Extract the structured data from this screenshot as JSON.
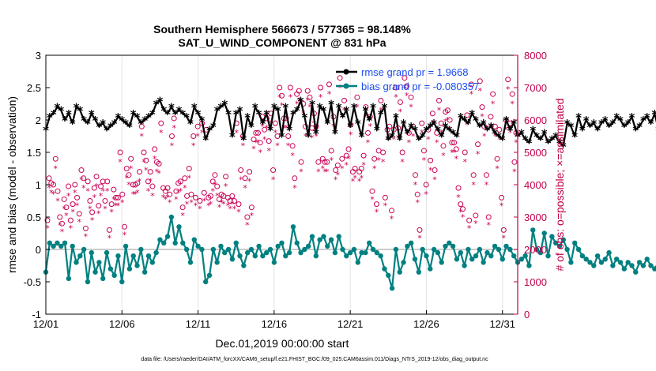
{
  "chart_data": {
    "type": "line",
    "title": "Southern Hemisphere 566673 / 577365 = 98.148%",
    "subtitle": "SAT_U_WIND_COMPONENT @ 831 hPa",
    "xlabel": "Dec.01,2019 00:00:00 start",
    "ylabel": "rmse and bias (model - observation)",
    "ylabel_right": "# of obs: o=possible; ×=assimilated",
    "ylim": [
      -1,
      3
    ],
    "ylim_right": [
      0,
      8000
    ],
    "xlim": [
      1,
      32
    ],
    "x_ticks": [
      1,
      6,
      11,
      16,
      21,
      26,
      31
    ],
    "x_tick_labels": [
      "12/01",
      "12/06",
      "12/11",
      "12/16",
      "12/21",
      "12/26",
      "12/31"
    ],
    "y_ticks": [
      "-1",
      "-0.5",
      "0",
      "0.5",
      "1",
      "1.5",
      "2",
      "2.5",
      "3"
    ],
    "y_ticks_right": [
      "0",
      "1000",
      "2000",
      "3000",
      "4000",
      "5000",
      "6000",
      "7000",
      "8000"
    ],
    "zero_line": 0,
    "x_start": 1.0,
    "x_step": 0.25,
    "colors": {
      "rmse": "#000000",
      "bias": "#008080",
      "obs": "#cc0055",
      "axis_right": "#c0004a",
      "zero": "#bbbbbb"
    },
    "series": [
      {
        "name": "rmse grand pr = 1.9668",
        "values": [
          1.85,
          2.05,
          2.1,
          2.2,
          2.15,
          2.0,
          2.1,
          1.95,
          2.2,
          2.15,
          2.0,
          1.95,
          2.1,
          2.0,
          1.9,
          1.95,
          1.85,
          1.9,
          1.95,
          2.05,
          2.0,
          1.95,
          1.9,
          2.1,
          2.05,
          1.95,
          2.0,
          2.05,
          2.1,
          2.25,
          2.3,
          2.15,
          2.1,
          2.2,
          2.1,
          2.15,
          2.1,
          2.05,
          1.95,
          2.2,
          2.1,
          2.0,
          1.7,
          1.85,
          1.9,
          2.15,
          2.2,
          2.25,
          2.1,
          1.75,
          2.1,
          2.15,
          1.7,
          2.05,
          1.9,
          2.2,
          2.1,
          1.95,
          2.1,
          1.85,
          2.2,
          2.15,
          1.75,
          2.2,
          1.85,
          2.1,
          2.15,
          2.3,
          2.05,
          1.75,
          2.25,
          1.8,
          2.2,
          2.15,
          1.95,
          2.25,
          1.8,
          2.2,
          2.05,
          2.15,
          1.9,
          2.2,
          1.95,
          1.75,
          2.15,
          2.0,
          2.2,
          1.85,
          2.1,
          2.2,
          1.7,
          1.75,
          2.05,
          1.7,
          1.95,
          1.8,
          1.9,
          1.85,
          1.7,
          1.75,
          1.85,
          1.9,
          1.95,
          1.85,
          1.75,
          1.9,
          1.85,
          1.8,
          1.75,
          2.05,
          2.0,
          1.95,
          2.1,
          2.0,
          1.9,
          1.95,
          1.85,
          1.9,
          1.8,
          1.75,
          1.7,
          2.0,
          1.85,
          1.95,
          1.75,
          1.8,
          1.7,
          1.65,
          1.85,
          1.75,
          1.7,
          1.8,
          1.65,
          1.7,
          1.75,
          1.65,
          1.6,
          1.95,
          1.9,
          1.75,
          2.05,
          1.85,
          2.0,
          1.9,
          1.95,
          1.85,
          1.95,
          2.0,
          1.9,
          1.95,
          2.05,
          2.0,
          1.9,
          1.95,
          2.05,
          1.85,
          1.9,
          2.0,
          2.05,
          1.95,
          2.1,
          1.85,
          2.0,
          1.6,
          1.9,
          2.05,
          2.0,
          2.1,
          1.95,
          2.1,
          2.15,
          2.05,
          2.2,
          2.0,
          1.9,
          1.85
        ]
      },
      {
        "name": "bias grand pr = -0.080357",
        "values": [
          -0.35,
          0.1,
          0.05,
          0.1,
          0.05,
          0.1,
          -0.45,
          0.05,
          -0.2,
          -0.1,
          0.0,
          -0.5,
          -0.05,
          -0.35,
          -0.2,
          -0.45,
          -0.05,
          -0.3,
          -0.4,
          -0.1,
          -0.5,
          0.05,
          -0.3,
          -0.1,
          -0.25,
          0.0,
          -0.35,
          -0.1,
          -0.2,
          -0.05,
          0.15,
          0.1,
          0.2,
          0.5,
          0.1,
          0.35,
          0.1,
          0.0,
          -0.2,
          0.15,
          0.05,
          0.0,
          -0.5,
          -0.4,
          0.0,
          -0.2,
          0.05,
          -0.05,
          0.0,
          -0.15,
          0.1,
          -0.1,
          -0.25,
          -0.05,
          0.0,
          -0.1,
          0.05,
          -0.1,
          -0.05,
          0.0,
          -0.2,
          0.05,
          0.1,
          -0.1,
          -0.05,
          0.35,
          0.1,
          -0.05,
          0.0,
          0.05,
          0.2,
          -0.1,
          0.15,
          0.2,
          0.05,
          0.15,
          -0.05,
          0.2,
          0.0,
          -0.1,
          -0.05,
          0.0,
          -0.2,
          -0.05,
          -0.05,
          0.1,
          0.0,
          -0.05,
          -0.1,
          -0.3,
          -0.4,
          -0.6,
          0.0,
          -0.35,
          -0.2,
          0.05,
          0.1,
          -0.15,
          -0.35,
          0.0,
          -0.1,
          -0.3,
          0.0,
          -0.05,
          -0.2,
          0.05,
          0.1,
          0.05,
          -0.15,
          -0.05,
          -0.25,
          0.0,
          -0.15,
          -0.1,
          0.0,
          -0.2,
          -0.05,
          -0.1,
          0.05,
          0.0,
          -0.15,
          0.05,
          0.0,
          -0.1,
          -0.2,
          -0.15,
          -0.1,
          -0.25,
          0.3,
          0.0,
          -0.05,
          0.25,
          -0.1,
          0.2,
          0.1,
          0.05,
          0.15,
          0.0,
          -0.2,
          0.1,
          0.0,
          -0.1,
          -0.15,
          -0.2,
          -0.25,
          -0.1,
          -0.2,
          -0.15,
          -0.05,
          -0.25,
          -0.15,
          -0.2,
          -0.3,
          -0.2,
          -0.25,
          -0.35,
          -0.2,
          -0.25,
          -0.15,
          -0.25,
          -0.3,
          -0.2,
          -0.25,
          -0.15,
          -0.3,
          -0.2,
          -0.25,
          -0.1,
          -0.2,
          -0.3,
          -0.35,
          -0.1,
          0.1,
          -0.15,
          0.0,
          -0.25,
          0.05,
          -0.15,
          -0.3,
          0.15
        ]
      },
      {
        "name": "possible",
        "axis": "right",
        "marker": "o",
        "values": [
          2900,
          4200,
          4050,
          4000,
          4800,
          3800,
          3000,
          2800,
          3550,
          3300,
          3950,
          2900,
          3400,
          4000,
          3600,
          3100,
          4450,
          4200,
          2650,
          4100,
          3500,
          3150,
          3900,
          4250,
          3350,
          3950,
          4100,
          3500,
          4100,
          2600,
          3400,
          3850,
          3600,
          3600,
          5000,
          3700,
          2700,
          4500,
          4300,
          4800,
          4000,
          4000,
          4050,
          4400,
          5800,
          5000,
          4750,
          4100,
          4400,
          3950,
          5100,
          4700,
          4650,
          5900,
          3900,
          3800,
          3900,
          3700,
          5500,
          6050,
          3800,
          4050,
          4100,
          3300,
          4200,
          3650,
          4500,
          3700,
          5500,
          3600,
          5800,
          3500,
          5900,
          3750,
          5700,
          3600,
          3650,
          4100,
          4300,
          3950,
          3550,
          3700,
          3650,
          4250,
          3600,
          3500,
          3650,
          3500,
          5900,
          3400,
          4450,
          5500,
          4200,
          3000,
          4400,
          3300,
          5400,
          5600,
          5600,
          5300,
          6100,
          5700,
          6050,
          5350,
          6200,
          4450,
          5900,
          5500,
          7000,
          6750,
          6050,
          6050,
          5500,
          7000,
          5200,
          4200,
          6800,
          6900,
          4700,
          6500,
          5800,
          6900,
          6700,
          5750,
          6200,
          5800,
          4700,
          7000,
          4800,
          4700,
          4700,
          7100,
          5050,
          6100,
          4450,
          4600,
          7300,
          4800,
          6600,
          4900,
          5100,
          5850,
          4400,
          4500,
          6700,
          4400,
          4500,
          4900,
          6400,
          5600,
          6100,
          3800,
          4800,
          3400,
          5050,
          6600,
          5000,
          3600,
          5700,
          5800,
          3200,
          5700,
          7000,
          5750,
          6550,
          5000,
          7300,
          7050,
          5600,
          6700,
          5800,
          4300,
          3700,
          2600,
          5900,
          5050,
          4000,
          5700,
          4750,
          6200,
          4450,
          5600,
          6600,
          5900,
          5200,
          6250,
          6300,
          6000,
          5300,
          5300,
          5100,
          3900,
          3400,
          3250,
          5000,
          6150,
          2900,
          7100,
          4300,
          3050,
          5250,
          7200,
          6400,
          5800,
          4300,
          3000,
          6100,
          6800,
          5800,
          4800,
          5700,
          3600,
          2600,
          6000,
          7250,
          5900,
          6800,
          4700,
          5600
        ]
      },
      {
        "name": "assimilated",
        "axis": "right",
        "marker": "x",
        "values": [
          2850,
          4100,
          3950,
          3900,
          4700,
          3700,
          2950,
          2750,
          3450,
          3250,
          3850,
          2850,
          3350,
          3950,
          3550,
          3050,
          4350,
          4100,
          2600,
          4000,
          3450,
          3100,
          3800,
          4150,
          3300,
          3850,
          4000,
          3450,
          4000,
          2550,
          3350,
          3750,
          3550,
          3550,
          4900,
          3650,
          2650,
          4400,
          4200,
          4700,
          3900,
          3900,
          3950,
          4300,
          5700,
          4900,
          4650,
          4000,
          4300,
          3850,
          5000,
          4600,
          4550,
          5800,
          3800,
          3750,
          3800,
          3650,
          5400,
          5950,
          3750,
          3950,
          4000,
          3250,
          4100,
          3600,
          4400,
          3650,
          5400,
          3550,
          5700,
          3450,
          5800,
          3700,
          5600,
          3550,
          3600,
          4000,
          4200,
          3850,
          3500,
          3650,
          3600,
          4150,
          3550,
          3450,
          3600,
          3450,
          5800,
          3350,
          4350,
          5400,
          4100,
          2950,
          4300,
          3250,
          5300,
          5500,
          5500,
          5200,
          6000,
          5600,
          5950,
          5250,
          6100,
          4350,
          5800,
          5400,
          6900,
          6650,
          5950,
          5950,
          5400,
          6900,
          5100,
          4100,
          6700,
          6800,
          4600,
          6400,
          5700,
          6800,
          6600,
          5650,
          6100,
          5700,
          4600,
          6900,
          4700,
          4600,
          4600,
          7000,
          4950,
          6000,
          4350,
          4500,
          7200,
          4700,
          6500,
          4800,
          5000,
          5750,
          4300,
          4400,
          6600,
          4300,
          4400,
          4800,
          6300,
          5500,
          6000,
          3750,
          4700,
          3350,
          4950,
          6500,
          4900,
          3550,
          5600,
          5700,
          3150,
          5600,
          6900,
          5650,
          6450,
          4900,
          7200,
          6950,
          5500,
          6600,
          5700,
          4200,
          3650,
          2550,
          5800,
          4950,
          3900,
          5600,
          4650,
          6100,
          4350,
          5500,
          6500,
          5800,
          5100,
          6150,
          6200,
          5900,
          5200,
          5200,
          5000,
          3800,
          3350,
          3200,
          4900,
          6050,
          2850,
          7000,
          4200,
          3000,
          5150,
          7100,
          6300,
          5700,
          4200,
          2950,
          6000,
          6700,
          5700,
          4700,
          5600,
          3550,
          2550,
          5900,
          7150,
          5800,
          6700,
          4600,
          5500
        ]
      }
    ],
    "legend": [
      "rmse grand pr = 1.9668",
      "bias grand pr = -0.080357"
    ],
    "legend_position": "top-right",
    "footnote": "data file: /Users/raeder/DAI/ATM_forcXX/CAM6_setup/f.e21.FHIST_BGC.f09_025.CAM6assim.011/Diags_NTrS_2019-12/obs_diag_output.nc"
  }
}
